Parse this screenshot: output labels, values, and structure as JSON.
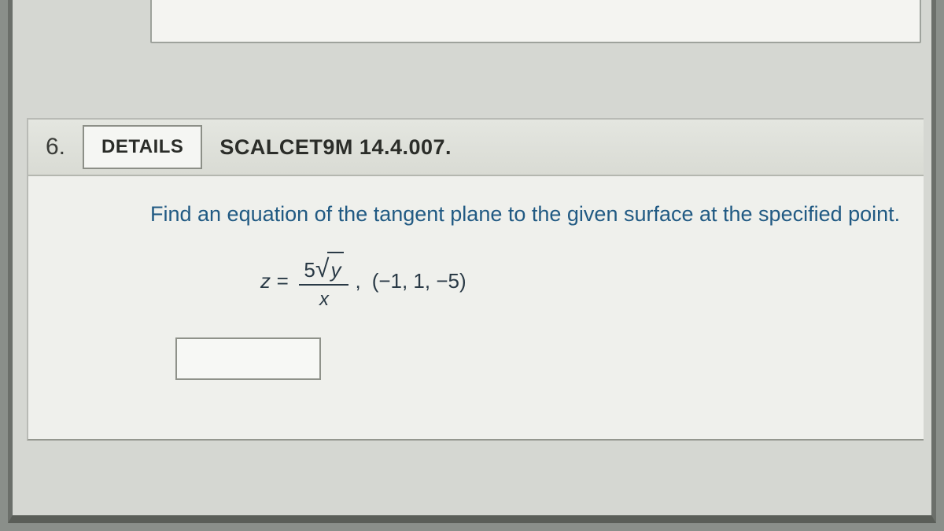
{
  "question": {
    "number": "6.",
    "details_label": "DETAILS",
    "problem_ref": "SCALCET9M 14.4.007.",
    "instruction": "Find an equation of the tangent plane to the given surface at the specified point.",
    "equation": {
      "lhs": "z =",
      "numerator_coef": "5",
      "numerator_radicand": "y",
      "denominator": "x",
      "separator": ",",
      "point": "(−1, 1, −5)"
    },
    "answer_value": ""
  },
  "style": {
    "page_bg": "#8a8f8a",
    "viewport_bg": "#d5d7d2",
    "card_bg": "#eff0ec",
    "header_gradient_top": "#e4e6e0",
    "header_gradient_bottom": "#d9dbd4",
    "border_color": "#b8bab5",
    "text_dark": "#2b2d29",
    "instruction_color": "#215a83",
    "math_color": "#2a3a46",
    "details_btn_bg": "#f5f6f3",
    "details_btn_border": "#8c8f87",
    "answer_border": "#8f928a",
    "answer_bg": "#f7f8f5",
    "font_family": "Verdana, Geneva, sans-serif",
    "q_number_fontsize": 30,
    "details_fontsize": 24,
    "ref_fontsize": 27,
    "instruction_fontsize": 27,
    "math_fontsize": 26
  }
}
